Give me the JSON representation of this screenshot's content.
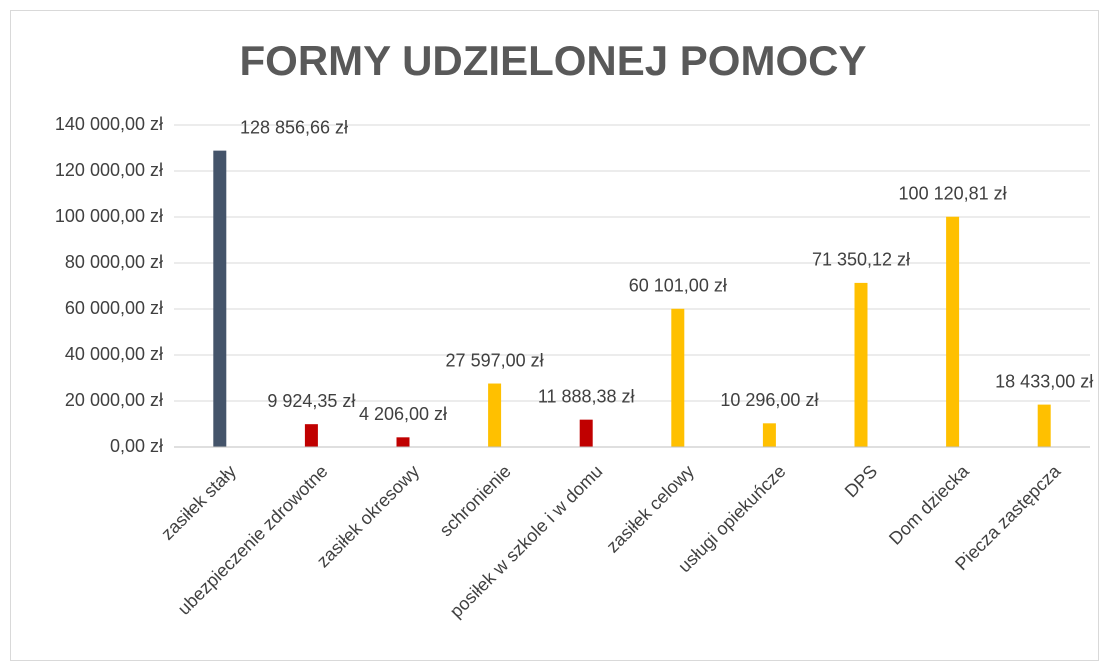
{
  "chart_data": {
    "type": "bar",
    "title": "FORMY UDZIELONEJ POMOCY",
    "categories": [
      "zasiłek stały",
      "ubezpieczenie zdrowotne",
      "zasiłek okresowy",
      "schronienie",
      "posiłek w szkole i w domu",
      "zasiłek celowy",
      "usługi opiekuńcze",
      "DPS",
      "Dom dziecka",
      "Piecza zastępcza"
    ],
    "values": [
      128856.66,
      9924.35,
      4206.0,
      27597.0,
      11888.38,
      60101.0,
      10296.0,
      71350.12,
      100120.81,
      18433.0
    ],
    "value_labels": [
      "128 856,66 zł",
      "9 924,35 zł",
      "4 206,00 zł",
      "27 597,00 zł",
      "11 888,38 zł",
      "60 101,00 zł",
      "10 296,00 zł",
      "71 350,12 zł",
      "100 120,81 zł",
      "18 433,00 zł"
    ],
    "colors": [
      "#44546a",
      "#c00000",
      "#c00000",
      "#ffc000",
      "#c00000",
      "#ffc000",
      "#ffc000",
      "#ffc000",
      "#ffc000",
      "#ffc000"
    ],
    "ylim": [
      0,
      140000
    ],
    "yticks": [
      {
        "value": 0,
        "label": "0,00 zł"
      },
      {
        "value": 20000,
        "label": "20 000,00 zł"
      },
      {
        "value": 40000,
        "label": "40 000,00 zł"
      },
      {
        "value": 60000,
        "label": "60 000,00 zł"
      },
      {
        "value": 80000,
        "label": "80 000,00 zł"
      },
      {
        "value": 100000,
        "label": "100 000,00 zł"
      },
      {
        "value": 120000,
        "label": "120 000,00 zł"
      },
      {
        "value": 140000,
        "label": "140 000,00 zł"
      }
    ],
    "grid": true
  }
}
